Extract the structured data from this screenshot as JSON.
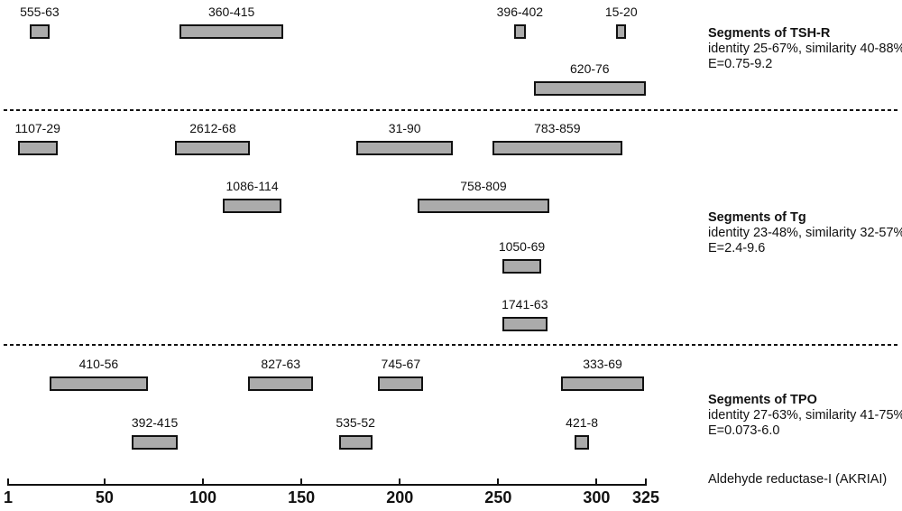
{
  "chart_data": {
    "type": "bar",
    "variant": "horizontal-interval-map",
    "title": "",
    "xlabel": "Aldehyde reductase-I (AKRIAI)",
    "x_axis": {
      "min": 1,
      "max": 325,
      "ticks": [
        1,
        50,
        100,
        150,
        200,
        250,
        300,
        325
      ]
    },
    "grid": false,
    "legend_position": "right",
    "colors": {
      "bar_fill": "#ababab",
      "bar_border": "#111111",
      "separator": "#111111",
      "text": "#111111",
      "background": "#ffffff"
    },
    "groups": [
      {
        "name": "TSH-R",
        "title": "Segments of TSH-R",
        "stats_line1": "identity 25-67%, similarity 40-88%,",
        "stats_line2": "E=0.75-9.2",
        "segments": [
          {
            "label": "555-63",
            "start": 12,
            "end": 22,
            "row": 0
          },
          {
            "label": "360-415",
            "start": 88,
            "end": 141,
            "row": 0
          },
          {
            "label": "396-402",
            "start": 258,
            "end": 264,
            "row": 0
          },
          {
            "label": "15-20",
            "start": 310,
            "end": 315,
            "row": 0
          },
          {
            "label": "620-76",
            "start": 268,
            "end": 325,
            "row": 1
          }
        ]
      },
      {
        "name": "Tg",
        "title": "Segments of Tg",
        "stats_line1": "identity 23-48%, similarity 32-57%,",
        "stats_line2": "E=2.4-9.6",
        "segments": [
          {
            "label": "1107-29",
            "start": 6,
            "end": 26,
            "row": 0
          },
          {
            "label": "2612-68",
            "start": 86,
            "end": 124,
            "row": 0
          },
          {
            "label": "31-90",
            "start": 178,
            "end": 227,
            "row": 0
          },
          {
            "label": "783-859",
            "start": 247,
            "end": 313,
            "row": 0
          },
          {
            "label": "1086-114",
            "start": 110,
            "end": 140,
            "row": 1
          },
          {
            "label": "758-809",
            "start": 209,
            "end": 276,
            "row": 1
          },
          {
            "label": "1050-69",
            "start": 252,
            "end": 272,
            "row": 2
          },
          {
            "label": "1741-63",
            "start": 252,
            "end": 275,
            "row": 3
          }
        ]
      },
      {
        "name": "TPO",
        "title": "Segments of TPO",
        "stats_line1": "identity 27-63%, similarity 41-75%,",
        "stats_line2": "E=0.073-6.0",
        "segments": [
          {
            "label": "410-56",
            "start": 22,
            "end": 72,
            "row": 0
          },
          {
            "label": "827-63",
            "start": 123,
            "end": 156,
            "row": 0
          },
          {
            "label": "745-67",
            "start": 189,
            "end": 212,
            "row": 0
          },
          {
            "label": "333-69",
            "start": 282,
            "end": 324,
            "row": 0
          },
          {
            "label": "392-415",
            "start": 64,
            "end": 87,
            "row": 1
          },
          {
            "label": "535-52",
            "start": 169,
            "end": 186,
            "row": 1
          },
          {
            "label": "421-8",
            "start": 289,
            "end": 296,
            "row": 1
          }
        ]
      }
    ]
  }
}
